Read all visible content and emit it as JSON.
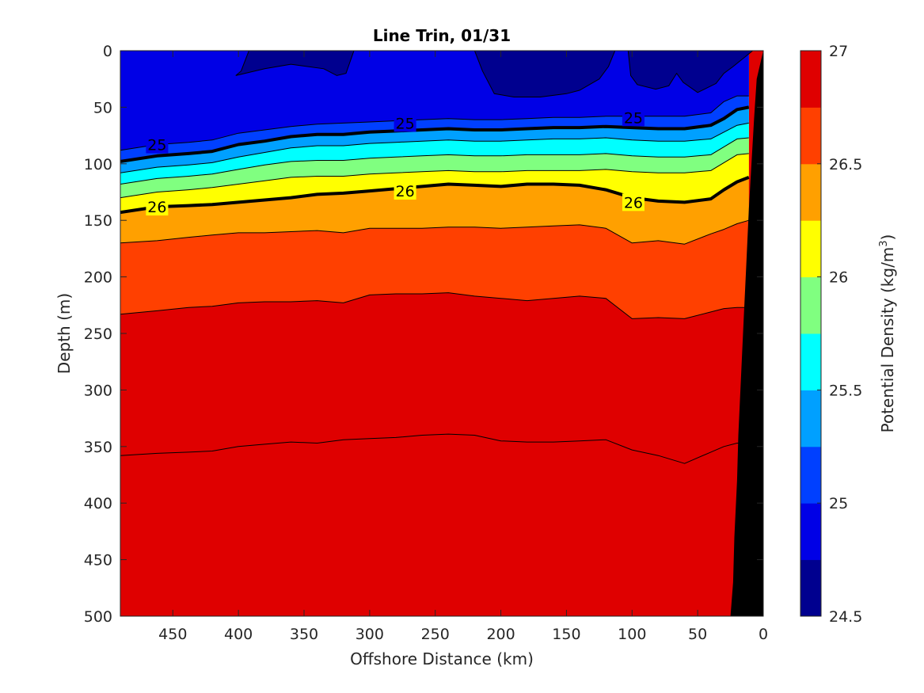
{
  "chart_data": {
    "type": "contour",
    "title": "Line Trin, 01/31",
    "xlabel": "Offshore Distance (km)",
    "ylabel": "Depth (m)",
    "xlim": [
      490,
      0
    ],
    "ylim": [
      0,
      500
    ],
    "y_reversed": true,
    "x_reversed": true,
    "xticks": [
      "450",
      "400",
      "350",
      "300",
      "250",
      "200",
      "150",
      "100",
      "50",
      "0"
    ],
    "yticks": [
      "0",
      "50",
      "100",
      "150",
      "200",
      "250",
      "300",
      "350",
      "400",
      "450",
      "500"
    ],
    "colorbar": {
      "label_main": "Potential Density (kg/m",
      "label_sup": "3",
      "label_end": ")",
      "range": [
        24.5,
        27
      ],
      "ticks": [
        "24.5",
        "25",
        "25.5",
        "26",
        "26.5",
        "27"
      ],
      "levels": [
        24.5,
        24.75,
        25,
        25.25,
        25.5,
        25.75,
        26,
        26.25,
        26.5,
        26.75,
        27
      ],
      "colors": [
        "#00008f",
        "#0000e6",
        "#0040ff",
        "#00a0ff",
        "#00ffff",
        "#80ff80",
        "#ffff00",
        "#ffa000",
        "#ff4000",
        "#df0000"
      ]
    },
    "contours": [
      {
        "level": 24.75,
        "x": [
          490,
          462,
          438,
          420,
          400,
          380,
          360,
          340,
          320,
          300,
          280,
          260,
          240,
          220,
          200,
          180,
          160,
          140,
          120,
          100,
          80,
          60,
          40,
          30,
          20,
          11
        ],
        "y": [
          88,
          83,
          81,
          79,
          73,
          70,
          67,
          65,
          64,
          63,
          62,
          61,
          60,
          61,
          61,
          60,
          59,
          59,
          58,
          58,
          58,
          58,
          55,
          45,
          40,
          40
        ]
      },
      {
        "level": 25.0,
        "x": [
          490,
          462,
          438,
          420,
          400,
          380,
          360,
          340,
          320,
          300,
          280,
          260,
          240,
          220,
          200,
          180,
          160,
          140,
          120,
          100,
          80,
          60,
          40,
          30,
          20,
          11
        ],
        "y": [
          98,
          93,
          91,
          89,
          83,
          80,
          76,
          74,
          74,
          72,
          71,
          70,
          69,
          70,
          70,
          69,
          68,
          68,
          67,
          68,
          69,
          69,
          66,
          60,
          52,
          50
        ]
      },
      {
        "level": 25.25,
        "x": [
          490,
          462,
          438,
          420,
          400,
          380,
          360,
          340,
          320,
          300,
          280,
          260,
          240,
          220,
          200,
          180,
          160,
          140,
          120,
          100,
          80,
          60,
          40,
          30,
          20,
          11
        ],
        "y": [
          108,
          103,
          101,
          99,
          94,
          90,
          86,
          84,
          84,
          82,
          81,
          80,
          79,
          80,
          80,
          79,
          78,
          78,
          77,
          79,
          80,
          80,
          78,
          72,
          66,
          64
        ]
      },
      {
        "level": 25.5,
        "x": [
          490,
          462,
          438,
          420,
          400,
          380,
          360,
          340,
          320,
          300,
          280,
          260,
          240,
          220,
          200,
          180,
          160,
          140,
          120,
          100,
          80,
          60,
          40,
          30,
          20,
          11
        ],
        "y": [
          118,
          113,
          111,
          109,
          105,
          101,
          98,
          97,
          97,
          95,
          94,
          93,
          92,
          93,
          93,
          92,
          92,
          92,
          91,
          93,
          94,
          94,
          92,
          85,
          78,
          77
        ]
      },
      {
        "level": 25.75,
        "x": [
          490,
          462,
          438,
          420,
          400,
          380,
          360,
          340,
          320,
          300,
          280,
          260,
          240,
          220,
          200,
          180,
          160,
          140,
          120,
          100,
          80,
          60,
          40,
          30,
          20,
          11
        ],
        "y": [
          130,
          125,
          123,
          121,
          118,
          115,
          112,
          111,
          111,
          109,
          108,
          107,
          106,
          107,
          107,
          106,
          106,
          106,
          105,
          107,
          108,
          108,
          106,
          99,
          92,
          91
        ]
      },
      {
        "level": 26.0,
        "x": [
          490,
          462,
          438,
          420,
          400,
          380,
          360,
          340,
          320,
          300,
          280,
          260,
          240,
          220,
          200,
          180,
          160,
          140,
          120,
          100,
          80,
          60,
          40,
          30,
          20,
          11
        ],
        "y": [
          143,
          138,
          137,
          136,
          134,
          132,
          130,
          127,
          126,
          124,
          122,
          120,
          118,
          119,
          120,
          118,
          118,
          119,
          123,
          130,
          133,
          134,
          131,
          123,
          116,
          112
        ]
      },
      {
        "level": 26.25,
        "x": [
          490,
          462,
          438,
          420,
          400,
          380,
          360,
          340,
          320,
          300,
          280,
          260,
          240,
          220,
          200,
          180,
          160,
          140,
          120,
          100,
          80,
          60,
          40,
          30,
          20,
          11
        ],
        "y": [
          170,
          168,
          165,
          163,
          161,
          161,
          160,
          159,
          161,
          157,
          157,
          157,
          156,
          156,
          157,
          156,
          155,
          154,
          157,
          170,
          168,
          171,
          162,
          158,
          153,
          150
        ]
      },
      {
        "level": 26.5,
        "x": [
          490,
          462,
          438,
          420,
          400,
          380,
          360,
          340,
          320,
          300,
          280,
          260,
          240,
          220,
          200,
          180,
          160,
          140,
          120,
          100,
          80,
          60,
          40,
          30,
          20,
          11
        ],
        "y": [
          233,
          230,
          227,
          226,
          223,
          222,
          222,
          221,
          223,
          216,
          215,
          215,
          214,
          217,
          219,
          221,
          219,
          217,
          219,
          237,
          236,
          237,
          231,
          228,
          227,
          227
        ]
      },
      {
        "level": 26.75,
        "x": [
          490,
          462,
          438,
          420,
          400,
          380,
          360,
          340,
          320,
          300,
          280,
          260,
          240,
          220,
          200,
          180,
          160,
          140,
          120,
          100,
          80,
          60,
          40,
          30,
          20,
          11
        ],
        "y": [
          358,
          356,
          355,
          354,
          350,
          348,
          346,
          347,
          344,
          343,
          342,
          340,
          339,
          340,
          345,
          346,
          346,
          345,
          344,
          353,
          358,
          365,
          355,
          350,
          347,
          347
        ]
      }
    ],
    "contour_labels": [
      {
        "text": "25",
        "x": 462,
        "y": 83
      },
      {
        "text": "25",
        "x": 273,
        "y": 64
      },
      {
        "text": "25",
        "x": 99,
        "y": 59
      },
      {
        "text": "26",
        "x": 462,
        "y": 138
      },
      {
        "text": "26",
        "x": 273,
        "y": 124
      },
      {
        "text": "26",
        "x": 99,
        "y": 134
      }
    ],
    "bathymetry": {
      "label": "seafloor",
      "color": "#000000",
      "x": [
        25,
        23,
        22,
        20,
        19,
        17,
        15,
        13,
        11,
        9,
        7,
        5,
        0
      ],
      "y": [
        500,
        470,
        430,
        380,
        340,
        290,
        240,
        190,
        140,
        100,
        60,
        25,
        0
      ]
    }
  }
}
